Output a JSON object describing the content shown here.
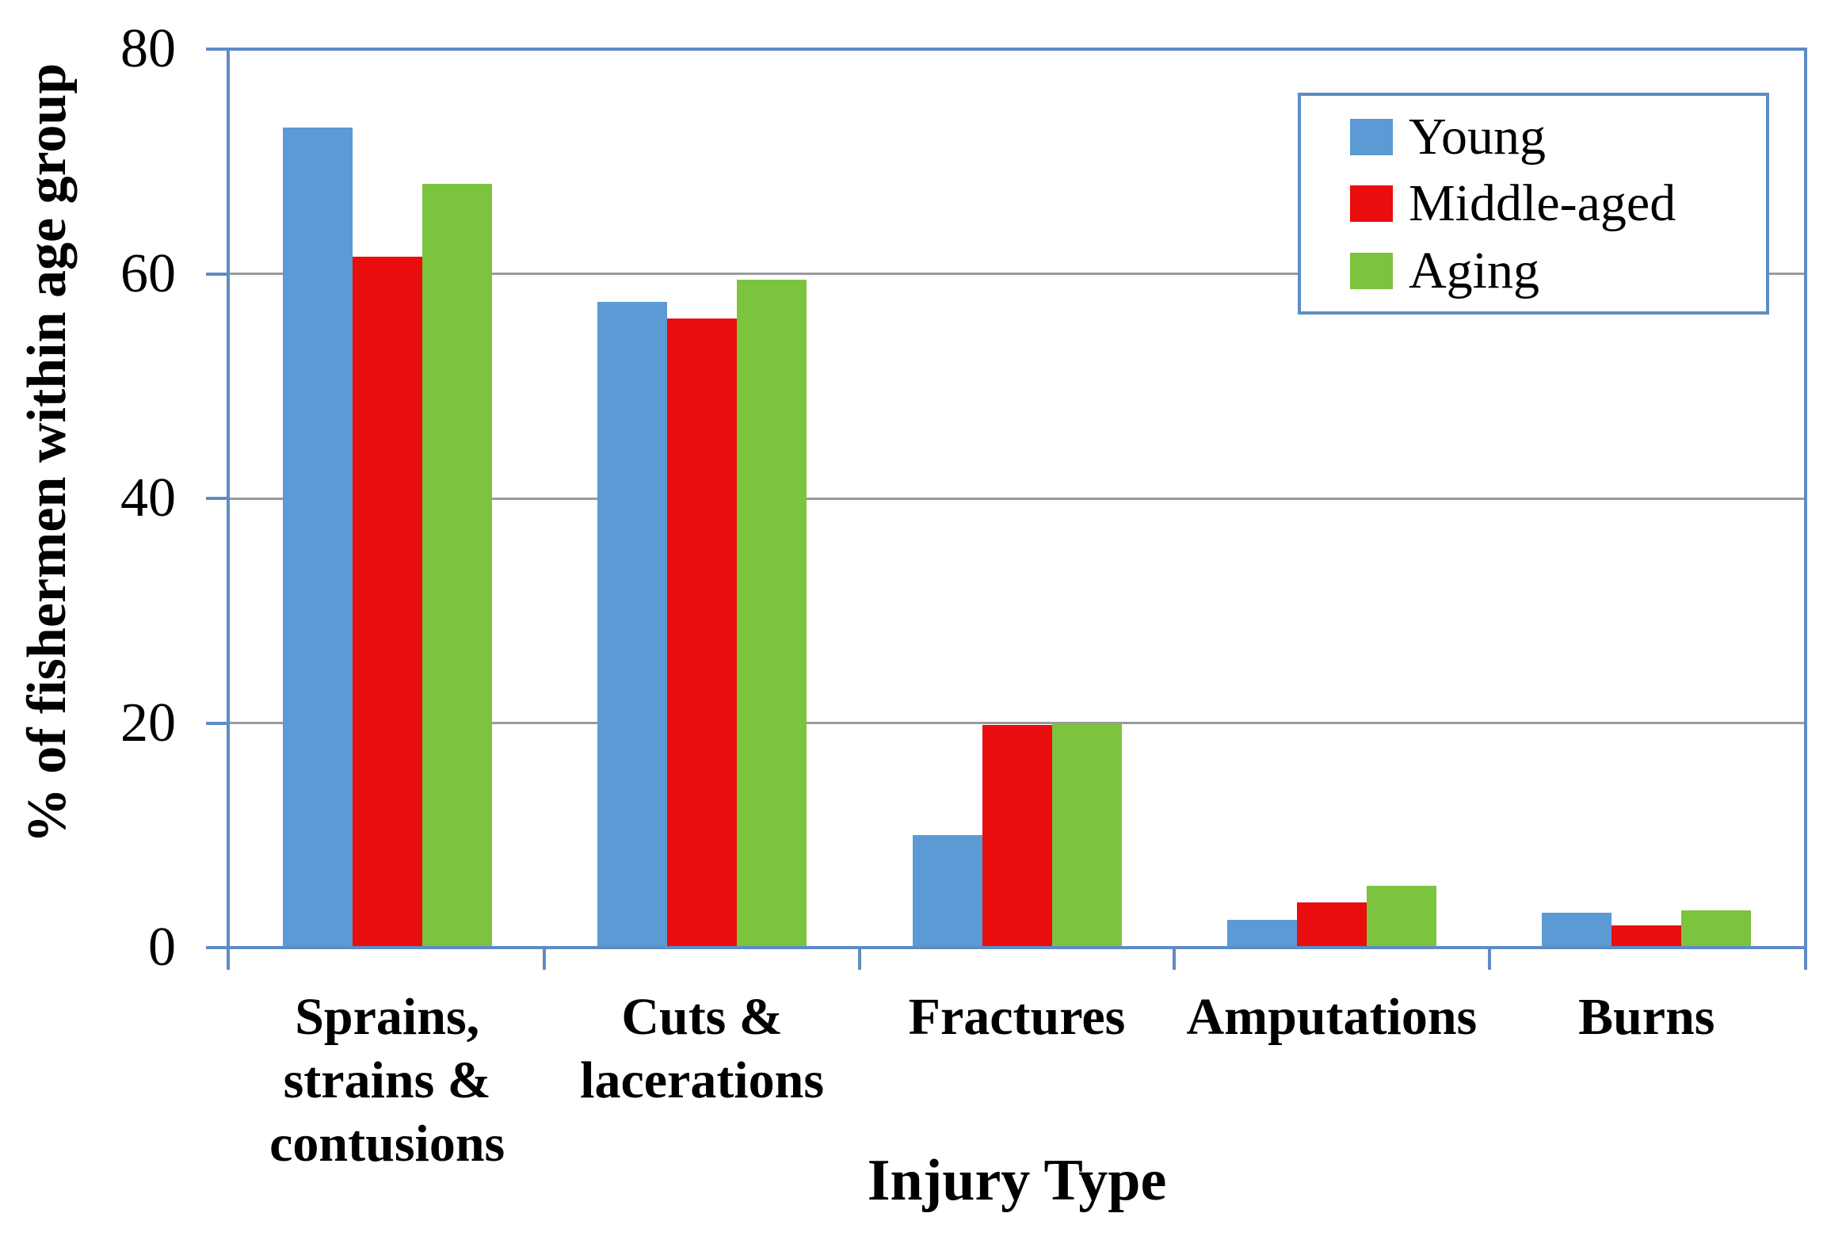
{
  "chart_data": {
    "type": "bar",
    "title": "",
    "xlabel": "Injury Type",
    "ylabel": "% of fishermen within age group",
    "categories": [
      "Sprains, strains & contusions",
      "Cuts & lacerations",
      "Fractures",
      "Amputations",
      "Burns"
    ],
    "categories_lines": [
      [
        "Sprains,",
        "strains &",
        "contusions"
      ],
      [
        "Cuts &",
        "lacerations"
      ],
      [
        "Fractures"
      ],
      [
        "Amputations"
      ],
      [
        "Burns"
      ]
    ],
    "series": [
      {
        "name": "Young",
        "color": "#5B9AD5",
        "values": [
          73,
          57.5,
          10,
          2.5,
          3.1
        ]
      },
      {
        "name": "Middle-aged",
        "color": "#E90D0D",
        "values": [
          61.5,
          56,
          19.8,
          4,
          2
        ]
      },
      {
        "name": "Aging",
        "color": "#7CC33E",
        "values": [
          68,
          59.5,
          20,
          5.5,
          3.3
        ]
      }
    ],
    "ylim": [
      0,
      80
    ],
    "yticks": [
      0,
      20,
      40,
      60,
      80
    ],
    "grid": true,
    "legend_position": "top-right"
  },
  "colors": {
    "axis": "#5E8CC4",
    "grid": "#9B9B9B",
    "text": "#000000",
    "legend_border": "#5E8CC4",
    "background": "#FFFFFF"
  }
}
